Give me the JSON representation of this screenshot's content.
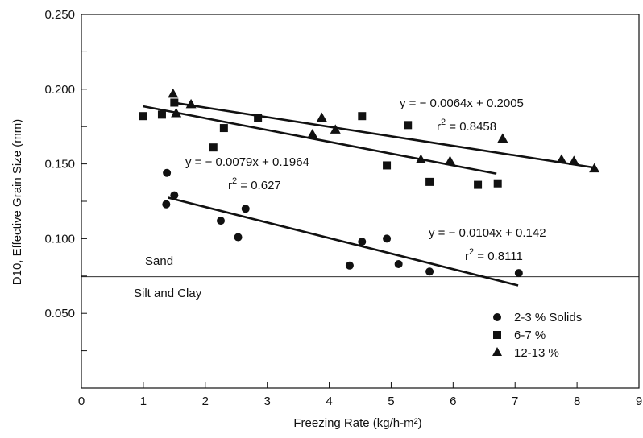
{
  "chart_data": {
    "type": "scatter",
    "title": "",
    "xlabel": "Freezing Rate (kg/h-m²)",
    "ylabel": "D10, Effective Grain Size (mm)",
    "xlim": [
      0,
      9
    ],
    "ylim": [
      0,
      0.25
    ],
    "x_ticks": [
      "0",
      "1",
      "2",
      "3",
      "4",
      "5",
      "6",
      "7",
      "8",
      "9"
    ],
    "y_ticks": [
      "0.050",
      "0.100",
      "0.150",
      "0.200",
      "0.250"
    ],
    "grid": false,
    "legend_position": "bottom-right",
    "series": [
      {
        "name": "2-3 % Solids",
        "marker": "circle",
        "points": [
          [
            1.38,
            0.144
          ],
          [
            1.37,
            0.123
          ],
          [
            1.5,
            0.129
          ],
          [
            2.25,
            0.112
          ],
          [
            2.53,
            0.101
          ],
          [
            2.65,
            0.12
          ],
          [
            4.33,
            0.082
          ],
          [
            4.53,
            0.098
          ],
          [
            4.93,
            0.1
          ],
          [
            5.12,
            0.083
          ],
          [
            5.62,
            0.078
          ],
          [
            7.06,
            0.077
          ]
        ],
        "fit": {
          "slope": -0.0104,
          "intercept": 0.142,
          "x_range": [
            1.4,
            7.05
          ]
        }
      },
      {
        "name": "6-7 %",
        "marker": "square",
        "points": [
          [
            1.0,
            0.182
          ],
          [
            1.3,
            0.183
          ],
          [
            1.5,
            0.191
          ],
          [
            2.13,
            0.161
          ],
          [
            2.3,
            0.174
          ],
          [
            2.85,
            0.181
          ],
          [
            4.53,
            0.182
          ],
          [
            4.93,
            0.149
          ],
          [
            5.27,
            0.176
          ],
          [
            5.62,
            0.138
          ],
          [
            6.4,
            0.136
          ],
          [
            6.72,
            0.137
          ]
        ],
        "fit": {
          "slope": -0.0079,
          "intercept": 0.1964,
          "x_range": [
            1.0,
            6.7
          ]
        }
      },
      {
        "name": "12-13 %",
        "marker": "triangle",
        "points": [
          [
            1.48,
            0.197
          ],
          [
            1.53,
            0.184
          ],
          [
            1.77,
            0.19
          ],
          [
            3.73,
            0.17
          ],
          [
            3.88,
            0.181
          ],
          [
            4.1,
            0.173
          ],
          [
            5.48,
            0.153
          ],
          [
            5.95,
            0.152
          ],
          [
            6.8,
            0.167
          ],
          [
            7.75,
            0.153
          ],
          [
            7.95,
            0.152
          ],
          [
            8.28,
            0.147
          ]
        ],
        "fit": {
          "slope": -0.0064,
          "intercept": 0.2005,
          "x_range": [
            1.5,
            8.25
          ]
        }
      }
    ],
    "reference_line": {
      "y": 0.0745,
      "label_above": "Sand",
      "label_below": "Silt and Clay"
    },
    "annotations": [
      {
        "equation": "y = − 0.0064x + 0.2005",
        "r2_prefix": "r",
        "r2_exp": "2",
        "r2_value": " = 0.8458"
      },
      {
        "equation": "y = − 0.0079x + 0.1964",
        "r2_prefix": "r",
        "r2_exp": "2",
        "r2_value": " = 0.627"
      },
      {
        "equation": "y = − 0.0104x + 0.142",
        "r2_prefix": "r",
        "r2_exp": "2",
        "r2_value": " = 0.8111"
      }
    ]
  }
}
